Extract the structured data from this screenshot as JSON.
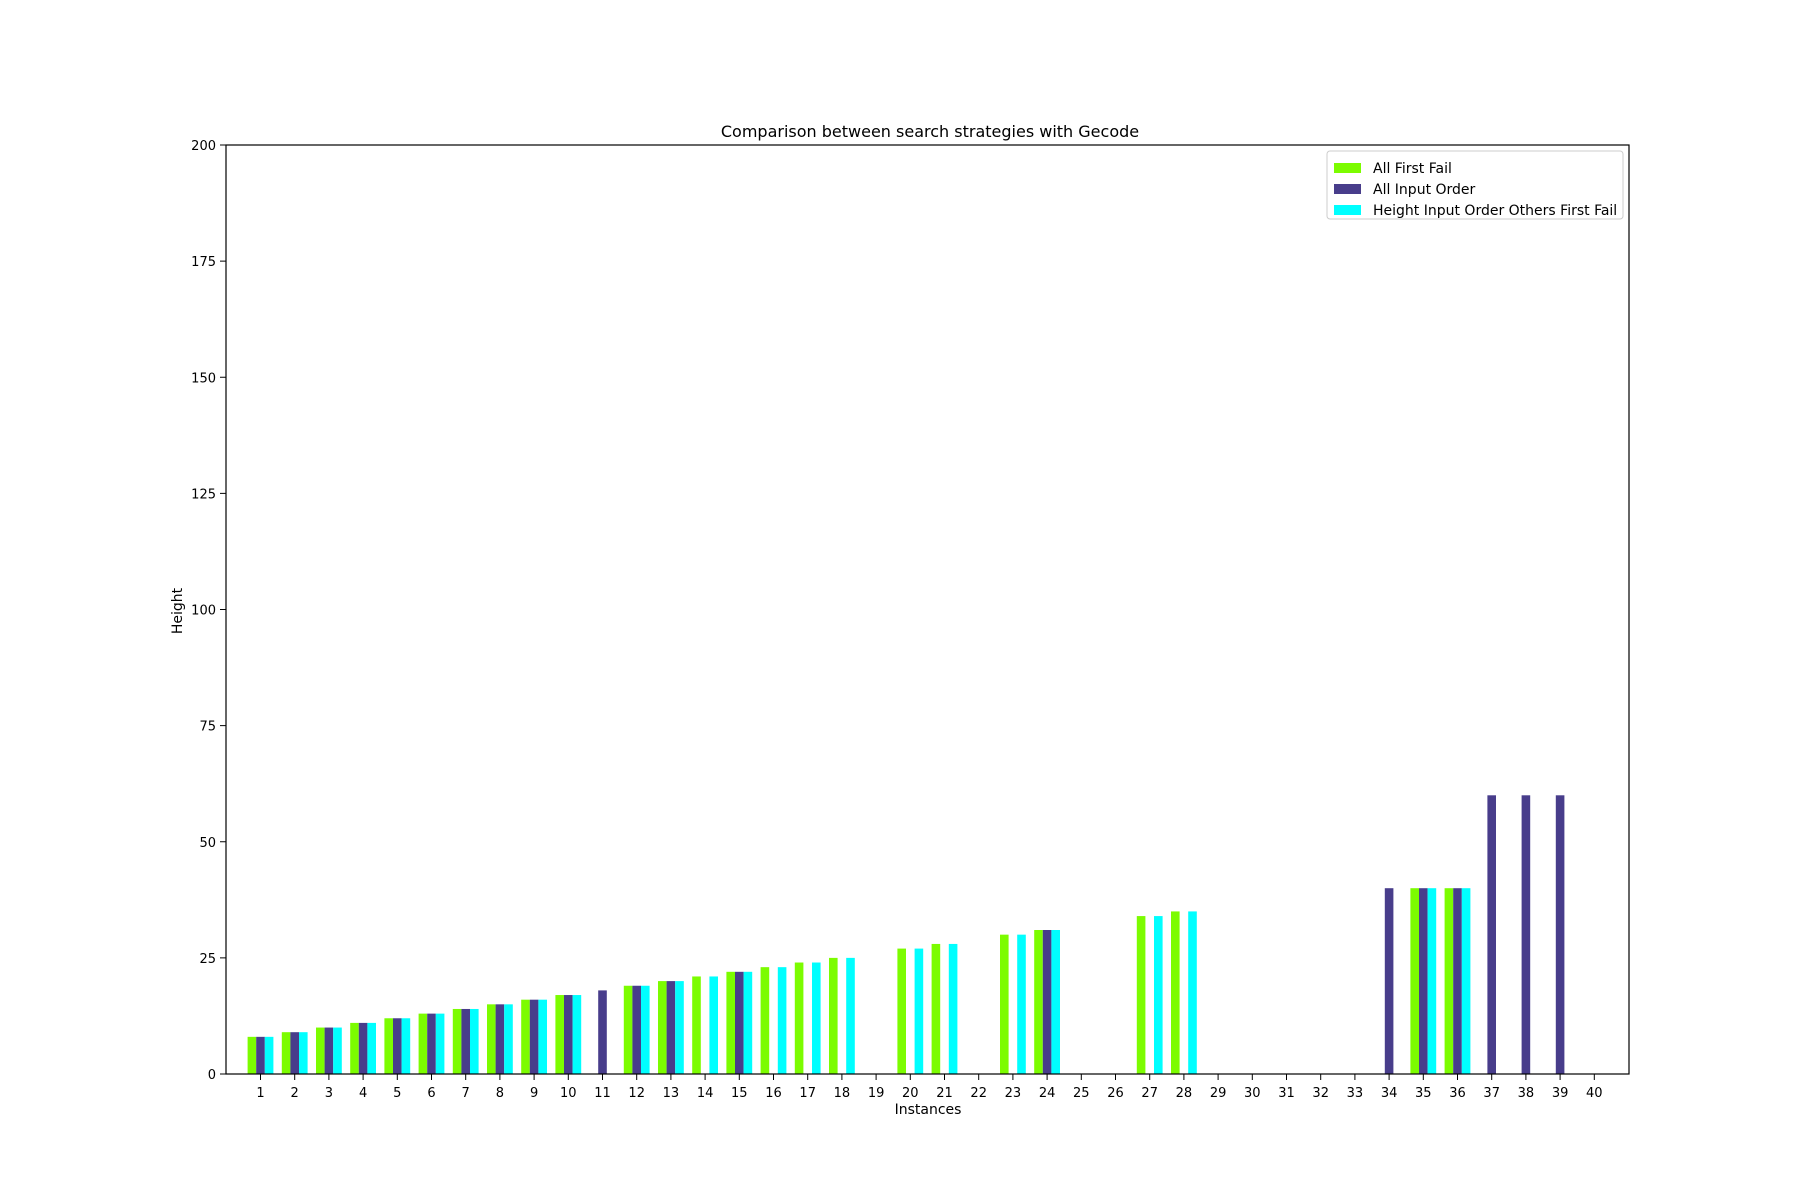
{
  "chart_data": {
    "type": "bar",
    "title": "Comparison between search strategies with Gecode",
    "xlabel": "Instances",
    "ylabel": "Height",
    "ylim": [
      0,
      200
    ],
    "yticks": [
      0,
      25,
      50,
      75,
      100,
      125,
      150,
      175,
      200
    ],
    "grid": false,
    "legend_position": "top-right",
    "categories": [
      "1",
      "2",
      "3",
      "4",
      "5",
      "6",
      "7",
      "8",
      "9",
      "10",
      "11",
      "12",
      "13",
      "14",
      "15",
      "16",
      "17",
      "18",
      "19",
      "20",
      "21",
      "22",
      "23",
      "24",
      "25",
      "26",
      "27",
      "28",
      "29",
      "30",
      "31",
      "32",
      "33",
      "34",
      "35",
      "36",
      "37",
      "38",
      "39",
      "40"
    ],
    "series": [
      {
        "name": "All First Fail",
        "color": "#7cfc00",
        "values": [
          8,
          9,
          10,
          11,
          12,
          13,
          14,
          15,
          16,
          17,
          null,
          19,
          20,
          21,
          22,
          23,
          24,
          25,
          null,
          27,
          28,
          null,
          30,
          31,
          null,
          null,
          34,
          35,
          null,
          null,
          null,
          null,
          null,
          null,
          40,
          40,
          null,
          null,
          null,
          null
        ]
      },
      {
        "name": "All Input Order",
        "color": "#483d8b",
        "values": [
          8,
          9,
          10,
          11,
          12,
          13,
          14,
          15,
          16,
          17,
          18,
          19,
          20,
          null,
          22,
          null,
          null,
          null,
          null,
          null,
          null,
          null,
          null,
          31,
          null,
          null,
          null,
          null,
          null,
          null,
          null,
          null,
          null,
          40,
          40,
          40,
          60,
          60,
          60,
          null
        ]
      },
      {
        "name": "Height Input Order Others First Fail",
        "color": "#00ffff",
        "values": [
          8,
          9,
          10,
          11,
          12,
          13,
          14,
          15,
          16,
          17,
          null,
          19,
          20,
          21,
          22,
          23,
          24,
          25,
          null,
          27,
          28,
          null,
          30,
          31,
          null,
          null,
          34,
          35,
          null,
          null,
          null,
          null,
          null,
          null,
          40,
          40,
          null,
          null,
          null,
          null
        ]
      }
    ]
  }
}
